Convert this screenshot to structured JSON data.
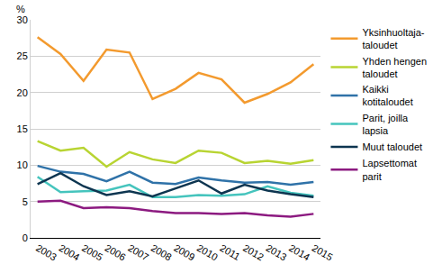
{
  "chart_data": {
    "type": "line",
    "ylabel": "%",
    "categories": [
      "2003",
      "2004",
      "2005",
      "2006",
      "2007",
      "2008",
      "2009",
      "2010",
      "2011",
      "2012",
      "2013",
      "2014",
      "2015"
    ],
    "series": [
      {
        "name": "Yksinhuoltaja-\ntaloudet",
        "color": "#f39a2e",
        "values": [
          27.6,
          25.3,
          21.6,
          25.9,
          25.5,
          19.1,
          20.5,
          22.7,
          21.8,
          18.6,
          19.8,
          21.4,
          23.9
        ]
      },
      {
        "name": "Yhden hengen\ntaloudet",
        "color": "#b8d432",
        "values": [
          13.3,
          12.0,
          12.4,
          9.8,
          11.8,
          10.8,
          10.3,
          12.0,
          11.7,
          10.3,
          10.6,
          10.2,
          10.7
        ]
      },
      {
        "name": "Kaikki\nkotitaloudet",
        "color": "#2f72a8",
        "values": [
          9.9,
          9.1,
          8.8,
          7.8,
          9.1,
          7.6,
          7.4,
          8.3,
          7.9,
          7.6,
          7.7,
          7.3,
          7.7
        ]
      },
      {
        "name": "Parit, joilla\nlapsia",
        "color": "#45c4bd",
        "values": [
          8.4,
          6.3,
          6.4,
          6.5,
          7.3,
          5.6,
          5.6,
          5.9,
          5.8,
          6.0,
          7.1,
          6.2,
          5.8
        ]
      },
      {
        "name": "Muut taloudet",
        "color": "#0d3550",
        "values": [
          7.4,
          8.9,
          7.1,
          5.9,
          6.4,
          5.7,
          6.8,
          7.9,
          6.1,
          7.3,
          6.5,
          6.0,
          5.6
        ]
      },
      {
        "name": "Lapsettomat\nparit",
        "color": "#8c1a80",
        "values": [
          5.0,
          5.1,
          4.1,
          4.2,
          4.1,
          3.7,
          3.4,
          3.4,
          3.3,
          3.4,
          3.1,
          2.9,
          3.3
        ]
      }
    ],
    "ylim": [
      0,
      30
    ],
    "yticks": [
      0,
      5,
      10,
      15,
      20,
      25,
      30
    ],
    "grid": true,
    "legend": "right"
  }
}
